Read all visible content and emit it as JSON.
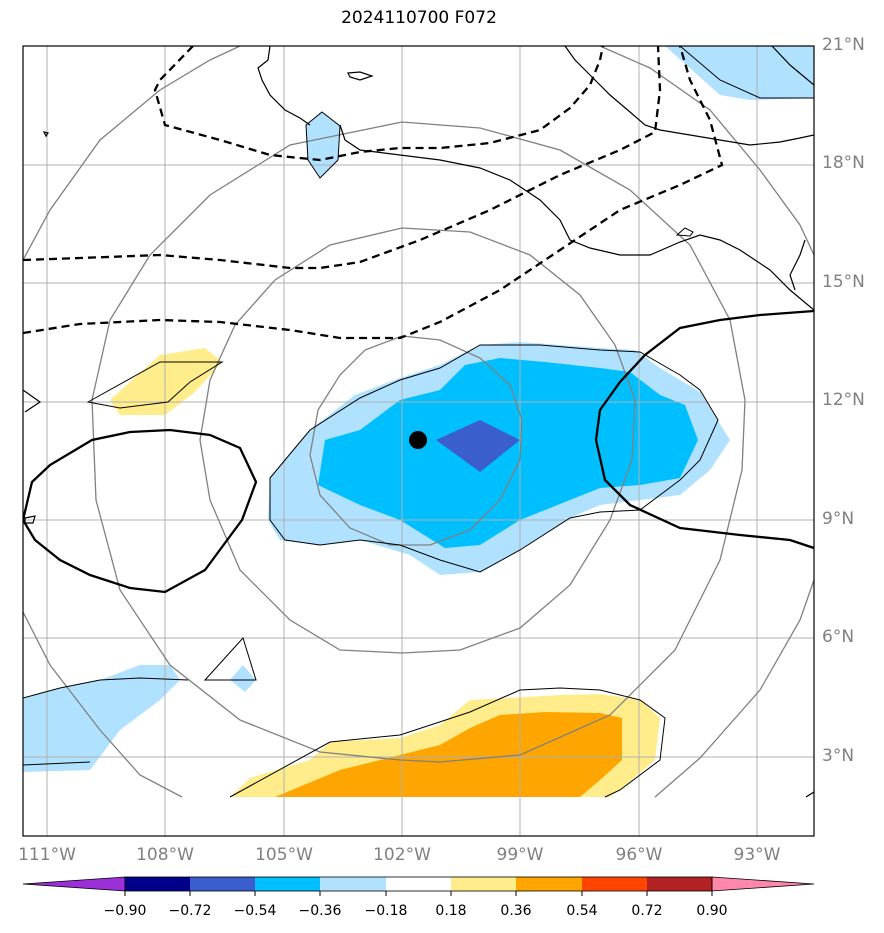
{
  "title": "2024110700 F072",
  "lat_labels": [
    "21°N",
    "18°N",
    "15°N",
    "12°N",
    "9°N",
    "6°N",
    "3°N"
  ],
  "lon_labels": [
    "111°W",
    "108°W",
    "105°W",
    "102°W",
    "99°W",
    "96°W",
    "93°W"
  ],
  "colorbar": {
    "labels": [
      "−0.90",
      "−0.72",
      "−0.54",
      "−0.36",
      "−0.18",
      "0.18",
      "0.36",
      "0.54",
      "0.72",
      "0.90"
    ],
    "colors": [
      "#9b30d9",
      "#00008b",
      "#3a5fcd",
      "#00bfff",
      "#b0e2ff",
      "#ffffff",
      "#ffec8b",
      "#ffa500",
      "#ff4500",
      "#b22222",
      "#ff88aa"
    ]
  },
  "colors": {
    "grid": "#b0b0b0",
    "label": "#808080",
    "range_rings": "#808080",
    "contour": "#000000"
  }
}
